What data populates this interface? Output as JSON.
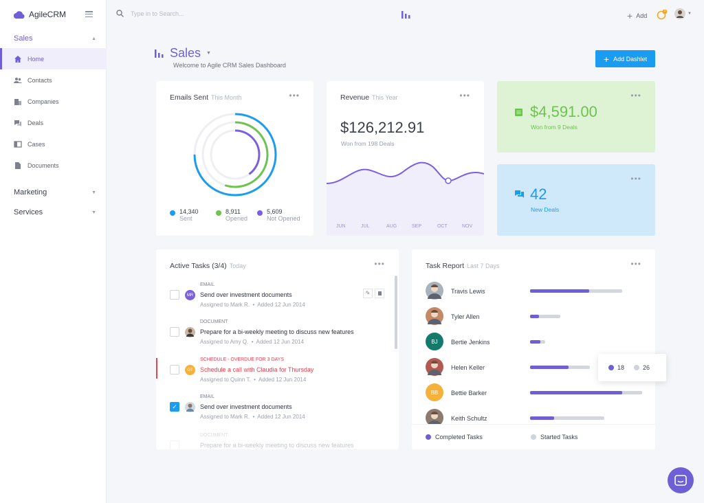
{
  "app": {
    "name": "AgileCRM"
  },
  "sidebar": {
    "sections": [
      {
        "label": "Sales"
      },
      {
        "label": "Marketing"
      },
      {
        "label": "Services"
      }
    ],
    "items": [
      {
        "label": "Home",
        "icon": "home-icon"
      },
      {
        "label": "Contacts",
        "icon": "contacts-icon"
      },
      {
        "label": "Companies",
        "icon": "companies-icon"
      },
      {
        "label": "Deals",
        "icon": "deals-icon"
      },
      {
        "label": "Cases",
        "icon": "cases-icon"
      },
      {
        "label": "Documents",
        "icon": "documents-icon"
      }
    ]
  },
  "topbar": {
    "search_placeholder": "Type in to Search...",
    "add_label": "Add",
    "notification_count": "1"
  },
  "header": {
    "title": "Sales",
    "subtitle": "Welcome to Agile CRM Sales Dashboard",
    "add_dashlet_label": "Add Dashlet"
  },
  "emails": {
    "title": "Emails Sent",
    "period": "This Month",
    "stats": [
      {
        "value": "14,340",
        "label": "Sent",
        "color": "#1a9cf0"
      },
      {
        "value": "8,911",
        "label": "Opened",
        "color": "#6cc44f"
      },
      {
        "value": "5,609",
        "label": "Not Opened",
        "color": "#7b5fe0"
      }
    ],
    "ring_fractions": [
      0.75,
      0.55,
      0.4
    ]
  },
  "revenue": {
    "title": "Revenue",
    "period": "This Year",
    "amount": "$126,212.91",
    "note": "Won from 198 Deals",
    "months": [
      "JUN",
      "JUL",
      "AUG",
      "SEP",
      "OCT",
      "NOV"
    ]
  },
  "won": {
    "amount": "$4,591.00",
    "note": "Won from 9 Deals",
    "color": "#6cc44f"
  },
  "new_deals": {
    "count": "42",
    "note": "New Deals",
    "color": "#1a9cf0"
  },
  "tasks": {
    "title": "Active Tasks",
    "count": "(3/4)",
    "period": "Today",
    "items": [
      {
        "type": "EMAIL",
        "title": "Send over investment documents",
        "assigned": "Assigned to Mark R.",
        "added": "Added 12 Jun 2014",
        "initials": "MR",
        "avatar_color": "#7b5fe0",
        "checked": false
      },
      {
        "type": "DOCUMENT",
        "title": "Prepare for a bi-weekly meeting to discuss new features",
        "assigned": "Assigned to Amy Q.",
        "added": "Added 12 Jun 2014",
        "initials": "",
        "avatar_color": "#8d7a6e",
        "checked": false
      },
      {
        "type": "SCHEDULE - OVERDUE FOR 3 DAYS",
        "title": "Schedule a call with Claudia for Thursday",
        "assigned": "Assigned to Quinn T.",
        "added": "Added 12 Jun 2014",
        "initials": "GT",
        "avatar_color": "#f5b13a",
        "checked": false
      },
      {
        "type": "EMAIL",
        "title": "Send over investment documents",
        "assigned": "Assigned to Mark R.",
        "added": "Added 12 Jun 2014",
        "initials": "",
        "avatar_color": "#9fb6c8",
        "checked": true
      },
      {
        "type": "DOCUMENT",
        "title": "Prepare for a bi-weekly meeting to discuss new features",
        "assigned": "",
        "added": "",
        "initials": "",
        "avatar_color": "#cccccc",
        "checked": false
      }
    ]
  },
  "report": {
    "title": "Task Report",
    "period": "Last 7 Days",
    "people": [
      {
        "name": "Travis Lewis",
        "initials": "",
        "color": "#a7b4be",
        "completed": 0.64,
        "started": 1.0
      },
      {
        "name": "Tyler Allen",
        "initials": "",
        "color": "#c48a66",
        "completed": 0.3,
        "started": 1.0
      },
      {
        "name": "Bertie Jenkins",
        "initials": "BJ",
        "color": "#137a6c",
        "completed": 0.67,
        "started": 1.0
      },
      {
        "name": "Helen Keller",
        "initials": "",
        "color": "#b25a52",
        "completed": 0.64,
        "started": 1.0
      },
      {
        "name": "Bettie Barker",
        "initials": "BB",
        "color": "#f5b13a",
        "completed": 0.82,
        "started": 1.0
      },
      {
        "name": "Keith Schultz",
        "initials": "",
        "color": "#8d7a6e",
        "completed": 0.32,
        "started": 1.0
      }
    ],
    "tooltip": {
      "completed": "18",
      "started": "26"
    },
    "legend": {
      "completed": "Completed Tasks",
      "started": "Started Tasks"
    }
  }
}
